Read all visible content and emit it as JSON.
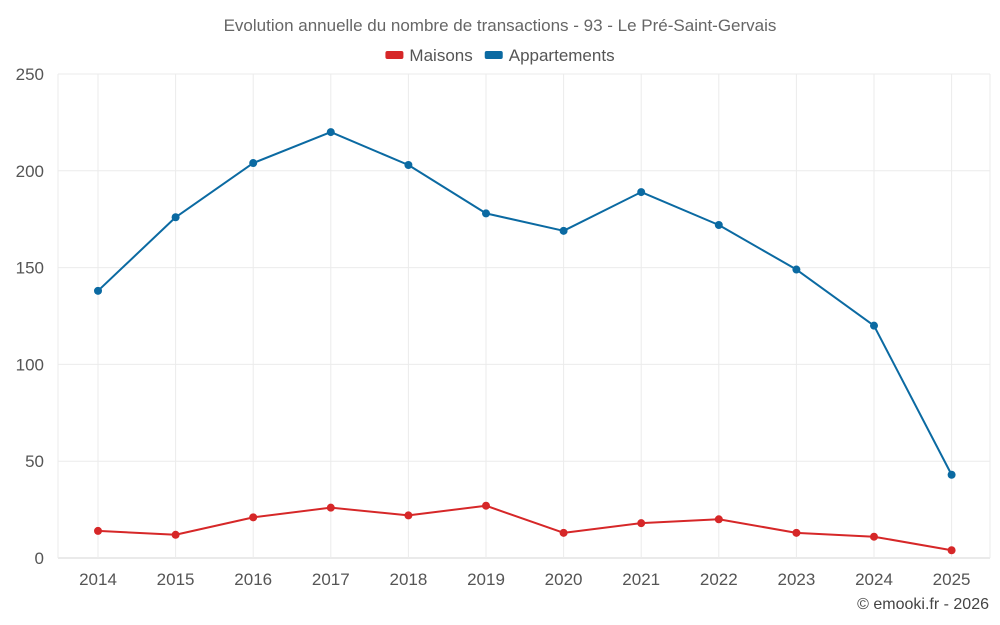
{
  "chart_data": {
    "type": "line",
    "title": "Evolution annuelle du nombre de transactions - 93 - Le Pré-Saint-Gervais",
    "categories": [
      "2014",
      "2015",
      "2016",
      "2017",
      "2018",
      "2019",
      "2020",
      "2021",
      "2022",
      "2023",
      "2024",
      "2025"
    ],
    "series": [
      {
        "name": "Maisons",
        "color": "#d62728",
        "values": [
          14,
          12,
          21,
          26,
          22,
          27,
          13,
          18,
          20,
          13,
          11,
          4
        ]
      },
      {
        "name": "Appartements",
        "color": "#0b6aa2",
        "values": [
          138,
          176,
          204,
          220,
          203,
          178,
          169,
          189,
          172,
          149,
          120,
          43
        ]
      }
    ],
    "ylim": [
      0,
      250
    ],
    "yticks": [
      0,
      50,
      100,
      150,
      200,
      250
    ],
    "xlabel": "",
    "ylabel": "",
    "grid": true,
    "legend_position": "top-center"
  },
  "credit": "© emooki.fr - 2026"
}
